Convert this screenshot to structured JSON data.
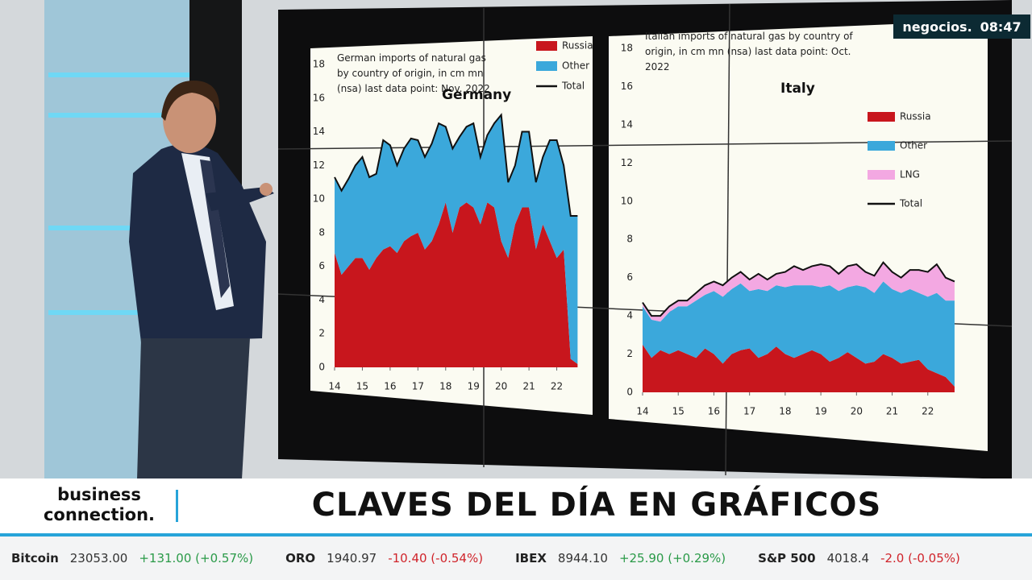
{
  "chart_data": [
    {
      "type": "stacked-area",
      "title": "German imports of natural gas by country of origin, in cm mn (nsa) last data point: Nov. 2022",
      "label": "Germany",
      "x": [
        14,
        14.25,
        14.5,
        14.75,
        15,
        15.25,
        15.5,
        15.75,
        16,
        16.25,
        16.5,
        16.75,
        17,
        17.25,
        17.5,
        17.75,
        18,
        18.25,
        18.5,
        18.75,
        19,
        19.25,
        19.5,
        19.75,
        20,
        20.25,
        20.5,
        20.75,
        21,
        21.25,
        21.5,
        21.75,
        22,
        22.25,
        22.5,
        22.75
      ],
      "xlim": [
        14,
        23
      ],
      "xticks": [
        14,
        15,
        16,
        17,
        18,
        19,
        20,
        21,
        22
      ],
      "ylim": [
        0,
        18
      ],
      "yticks": [
        0,
        2,
        4,
        6,
        8,
        10,
        12,
        14,
        16,
        18
      ],
      "grid": false,
      "series": [
        {
          "name": "Russia",
          "color": "#c8161d",
          "type": "area",
          "values": [
            6.8,
            5.5,
            6.0,
            6.5,
            6.5,
            5.8,
            6.5,
            7.0,
            7.2,
            6.8,
            7.5,
            7.8,
            8.0,
            7.0,
            7.5,
            8.5,
            9.8,
            8.0,
            9.5,
            9.8,
            9.5,
            8.5,
            9.8,
            9.5,
            7.5,
            6.5,
            8.5,
            9.5,
            9.5,
            7.0,
            8.5,
            7.5,
            6.5,
            7.0,
            0.5,
            0.2
          ]
        },
        {
          "name": "Other",
          "color": "#3ba8db",
          "type": "area",
          "values": [
            4.5,
            5.0,
            5.2,
            5.5,
            6.0,
            5.5,
            5.0,
            6.5,
            6.0,
            5.2,
            5.5,
            5.8,
            5.5,
            5.5,
            5.8,
            6.0,
            4.5,
            5.0,
            4.2,
            4.5,
            5.0,
            4.0,
            4.0,
            5.0,
            7.5,
            4.5,
            3.5,
            4.5,
            4.5,
            4.0,
            4.0,
            6.0,
            7.0,
            5.0,
            8.5,
            8.8
          ]
        },
        {
          "name": "Total",
          "color": "#111111",
          "type": "line",
          "values": [
            11.3,
            10.5,
            11.2,
            12.0,
            12.5,
            11.3,
            11.5,
            13.5,
            13.2,
            12.0,
            13.0,
            13.6,
            13.5,
            12.5,
            13.3,
            14.5,
            14.3,
            13.0,
            13.7,
            14.3,
            14.5,
            12.5,
            13.8,
            14.5,
            15.0,
            11.0,
            12.0,
            14.0,
            14.0,
            11.0,
            12.5,
            13.5,
            13.5,
            12.0,
            9.0,
            9.0
          ]
        }
      ]
    },
    {
      "type": "stacked-area",
      "title": "Italian imports of natural gas by country of origin, in cm mn (nsa) last data point: Oct. 2022",
      "label": "Italy",
      "x": [
        14,
        14.25,
        14.5,
        14.75,
        15,
        15.25,
        15.5,
        15.75,
        16,
        16.25,
        16.5,
        16.75,
        17,
        17.25,
        17.5,
        17.75,
        18,
        18.25,
        18.5,
        18.75,
        19,
        19.25,
        19.5,
        19.75,
        20,
        20.25,
        20.5,
        20.75,
        21,
        21.25,
        21.5,
        21.75,
        22,
        22.25,
        22.5,
        22.75
      ],
      "xlim": [
        14,
        23
      ],
      "xticks": [
        14,
        15,
        16,
        17,
        18,
        19,
        20,
        21,
        22
      ],
      "ylim": [
        0,
        18
      ],
      "yticks": [
        0,
        2,
        4,
        6,
        8,
        10,
        12,
        14,
        16,
        18
      ],
      "grid": false,
      "series": [
        {
          "name": "Russia",
          "color": "#c8161d",
          "type": "area",
          "values": [
            2.5,
            1.8,
            2.2,
            2.0,
            2.2,
            2.0,
            1.8,
            2.3,
            2.0,
            1.5,
            2.0,
            2.2,
            2.3,
            1.8,
            2.0,
            2.4,
            2.0,
            1.8,
            2.0,
            2.2,
            2.0,
            1.6,
            1.8,
            2.1,
            1.8,
            1.5,
            1.6,
            2.0,
            1.8,
            1.5,
            1.6,
            1.7,
            1.2,
            1.0,
            0.8,
            0.3
          ]
        },
        {
          "name": "Other",
          "color": "#3ba8db",
          "type": "area",
          "values": [
            2.0,
            2.0,
            1.5,
            2.2,
            2.3,
            2.5,
            3.0,
            2.8,
            3.3,
            3.5,
            3.4,
            3.5,
            3.0,
            3.6,
            3.3,
            3.2,
            3.5,
            3.8,
            3.6,
            3.4,
            3.5,
            4.0,
            3.5,
            3.4,
            3.8,
            4.0,
            3.6,
            3.8,
            3.6,
            3.7,
            3.8,
            3.5,
            3.8,
            4.2,
            4.0,
            4.5
          ]
        },
        {
          "name": "LNG",
          "color": "#f3a8e2",
          "type": "area",
          "values": [
            0.2,
            0.2,
            0.3,
            0.3,
            0.3,
            0.3,
            0.4,
            0.5,
            0.5,
            0.6,
            0.6,
            0.6,
            0.6,
            0.8,
            0.6,
            0.6,
            0.8,
            1.0,
            0.8,
            1.0,
            1.2,
            1.0,
            0.9,
            1.1,
            1.1,
            0.8,
            0.9,
            1.0,
            0.9,
            0.8,
            1.0,
            1.2,
            1.3,
            1.5,
            1.2,
            1.0
          ]
        },
        {
          "name": "Total",
          "color": "#111111",
          "type": "line",
          "values": [
            4.7,
            4.0,
            4.0,
            4.5,
            4.8,
            4.8,
            5.2,
            5.6,
            5.8,
            5.6,
            6.0,
            6.3,
            5.9,
            6.2,
            5.9,
            6.2,
            6.3,
            6.6,
            6.4,
            6.6,
            6.7,
            6.6,
            6.2,
            6.6,
            6.7,
            6.3,
            6.1,
            6.8,
            6.3,
            6.0,
            6.4,
            6.4,
            6.3,
            6.7,
            6.0,
            5.8
          ]
        }
      ]
    }
  ],
  "broadcast": {
    "channel": "negocios.",
    "time": "08:47",
    "show": "business connection.",
    "headline": "CLAVES DEL DÍA EN GRÁFICOS",
    "ticker": [
      {
        "name": "Bitcoin",
        "price": "23053.00",
        "change": "+131.00 (+0.57%)"
      },
      {
        "name": "ORO",
        "price": "1940.97",
        "change": "-10.40 (-0.54%)"
      },
      {
        "name": "IBEX",
        "price": "8944.10",
        "change": "+25.90 (+0.29%)"
      },
      {
        "name": "S&P 500",
        "price": "4018.4",
        "change": "-2.0 (-0.05%)"
      }
    ]
  }
}
